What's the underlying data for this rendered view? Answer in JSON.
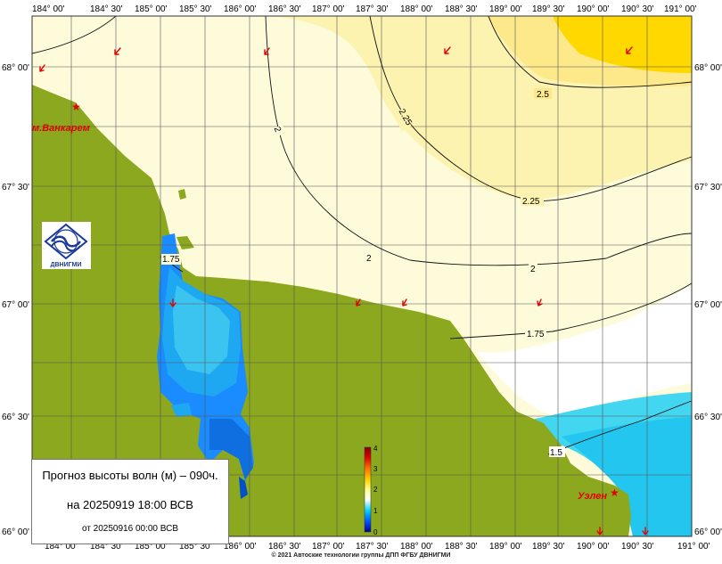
{
  "title": "Прогноз высоты волн (м) – 090ч.",
  "forecast_time": "на 20250919 18:00 ВСВ",
  "run_time": "от 20250916 00:00 ВСВ",
  "copyright": "© 2021 Автоские технологии группы ДПП ФГБУ ДВНИГМИ",
  "logo_text": "ДВНИГМИ",
  "lon_ticks": [
    "184° 00'",
    "184° 30'",
    "185° 00'",
    "185° 30'",
    "186° 00'",
    "186° 30'",
    "187° 00'",
    "187° 30'",
    "188° 00'",
    "188° 30'",
    "189° 00'",
    "189° 30'",
    "190° 00'",
    "190° 30'",
    "191° 00'"
  ],
  "lat_ticks": [
    "68° 00'",
    "67° 30'",
    "67° 00'",
    "66° 30'",
    "66° 00'"
  ],
  "places": [
    "м.Ванкарем",
    "Уэлен"
  ],
  "contour_labels": [
    "2.5",
    "2.25",
    "2.25",
    "2",
    "2",
    "2",
    "1.75",
    "1.75",
    "1.5"
  ],
  "colorbar": {
    "min": 0,
    "max": 4,
    "ticks": [
      "0",
      "1",
      "2",
      "3",
      "4"
    ]
  },
  "colors": {
    "land": "#8ca81e",
    "sea_light": "#fdfbd9",
    "sea_yellow": "#fde88a",
    "sea_bright": "#ffd800",
    "sea_white": "#ffffff",
    "sea_blue": "#1a8cff",
    "marker": "#e10000"
  }
}
